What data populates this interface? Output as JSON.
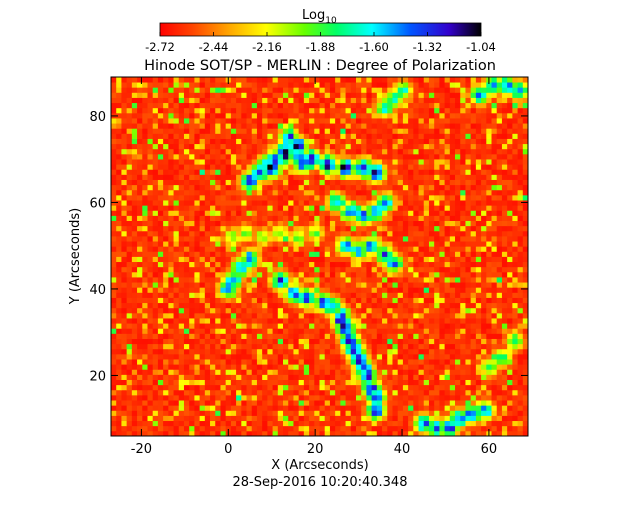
{
  "chart_data": {
    "type": "heatmap",
    "title": "Hinode SOT/SP - MERLIN : Degree of Polarization",
    "xlabel": "X (Arcseconds)",
    "ylabel": "Y (Arcseconds)",
    "timestamp": "28-Sep-2016 10:20:40.348",
    "xlim": [
      -27,
      69
    ],
    "ylim": [
      6,
      89
    ],
    "xticks": [
      -20,
      0,
      20,
      40,
      60
    ],
    "yticks": [
      20,
      40,
      60,
      80
    ],
    "colorbar": {
      "label": "Log",
      "label_sub": "10",
      "range": [
        -2.72,
        -1.04
      ],
      "ticks": [
        "-2.72",
        "-2.44",
        "-2.16",
        "-1.88",
        "-1.60",
        "-1.32",
        "-1.04"
      ],
      "colormap": "rainbow"
    },
    "background_value": -2.72,
    "features": [
      {
        "x": [
          10,
          13,
          16,
          19,
          23,
          27,
          31,
          34
        ],
        "y": [
          68,
          72,
          73,
          70,
          69,
          68,
          68,
          67
        ],
        "peak": -1.04
      },
      {
        "x": [
          5,
          7,
          9,
          11,
          13
        ],
        "y": [
          65,
          67,
          69,
          70,
          71
        ],
        "peak": -1.2
      },
      {
        "x": [
          14,
          15,
          16,
          17
        ],
        "y": [
          75,
          73,
          71,
          69
        ],
        "peak": -1.3
      },
      {
        "x": [
          25,
          28,
          31,
          34,
          36
        ],
        "y": [
          60,
          58,
          57,
          58,
          60
        ],
        "peak": -1.35
      },
      {
        "x": [
          1,
          4,
          8,
          12,
          16,
          20
        ],
        "y": [
          52,
          53,
          52,
          53,
          52,
          53
        ],
        "peak": -1.9
      },
      {
        "x": [
          27,
          30,
          33,
          36,
          38
        ],
        "y": [
          50,
          49,
          50,
          48,
          46
        ],
        "peak": -1.35
      },
      {
        "x": [
          0,
          1,
          3,
          5
        ],
        "y": [
          40,
          42,
          45,
          47
        ],
        "peak": -1.3
      },
      {
        "x": [
          12,
          15,
          18,
          22,
          24,
          26
        ],
        "y": [
          42,
          39,
          38,
          37,
          36,
          34
        ],
        "peak": -1.3
      },
      {
        "x": [
          26,
          27,
          28,
          29,
          30,
          31
        ],
        "y": [
          33,
          31,
          28,
          26,
          24,
          22
        ],
        "peak": -1.1
      },
      {
        "x": [
          31,
          32,
          33,
          34,
          34
        ],
        "y": [
          22,
          20,
          17,
          15,
          12
        ],
        "peak": -1.2
      },
      {
        "x": [
          45,
          48,
          51,
          53,
          56,
          59
        ],
        "y": [
          9,
          8,
          8,
          10,
          11,
          12
        ],
        "peak": -1.3
      },
      {
        "x": [
          58,
          61,
          64,
          67
        ],
        "y": [
          85,
          87,
          87,
          86
        ],
        "peak": -1.35
      },
      {
        "x": [
          36,
          38,
          40
        ],
        "y": [
          82,
          84,
          86
        ],
        "peak": -1.6
      },
      {
        "x": [
          60,
          63,
          66
        ],
        "y": [
          22,
          24,
          28
        ],
        "peak": -1.7
      }
    ]
  }
}
